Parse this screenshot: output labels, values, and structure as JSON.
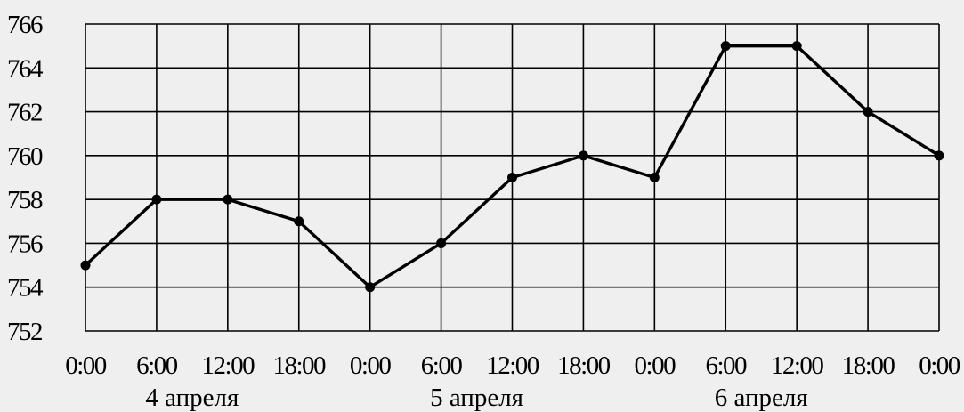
{
  "chart_data": {
    "type": "line",
    "title": "",
    "xlabel": "",
    "ylabel": "",
    "x_tick_labels": [
      "0:00",
      "6:00",
      "12:00",
      "18:00",
      "0:00",
      "6:00",
      "12:00",
      "18:00",
      "0:00",
      "6:00",
      "12:00",
      "18:00",
      "0:00"
    ],
    "date_labels": [
      "4 апреля",
      "5 апреля",
      "6 апреля"
    ],
    "y_ticks": [
      752,
      754,
      756,
      758,
      760,
      762,
      764,
      766
    ],
    "ylim": [
      752,
      766
    ],
    "grid": true,
    "series": [
      {
        "values": [
          755,
          758,
          758,
          757,
          754,
          756,
          759,
          760,
          759,
          765,
          765,
          762,
          760
        ]
      }
    ]
  }
}
